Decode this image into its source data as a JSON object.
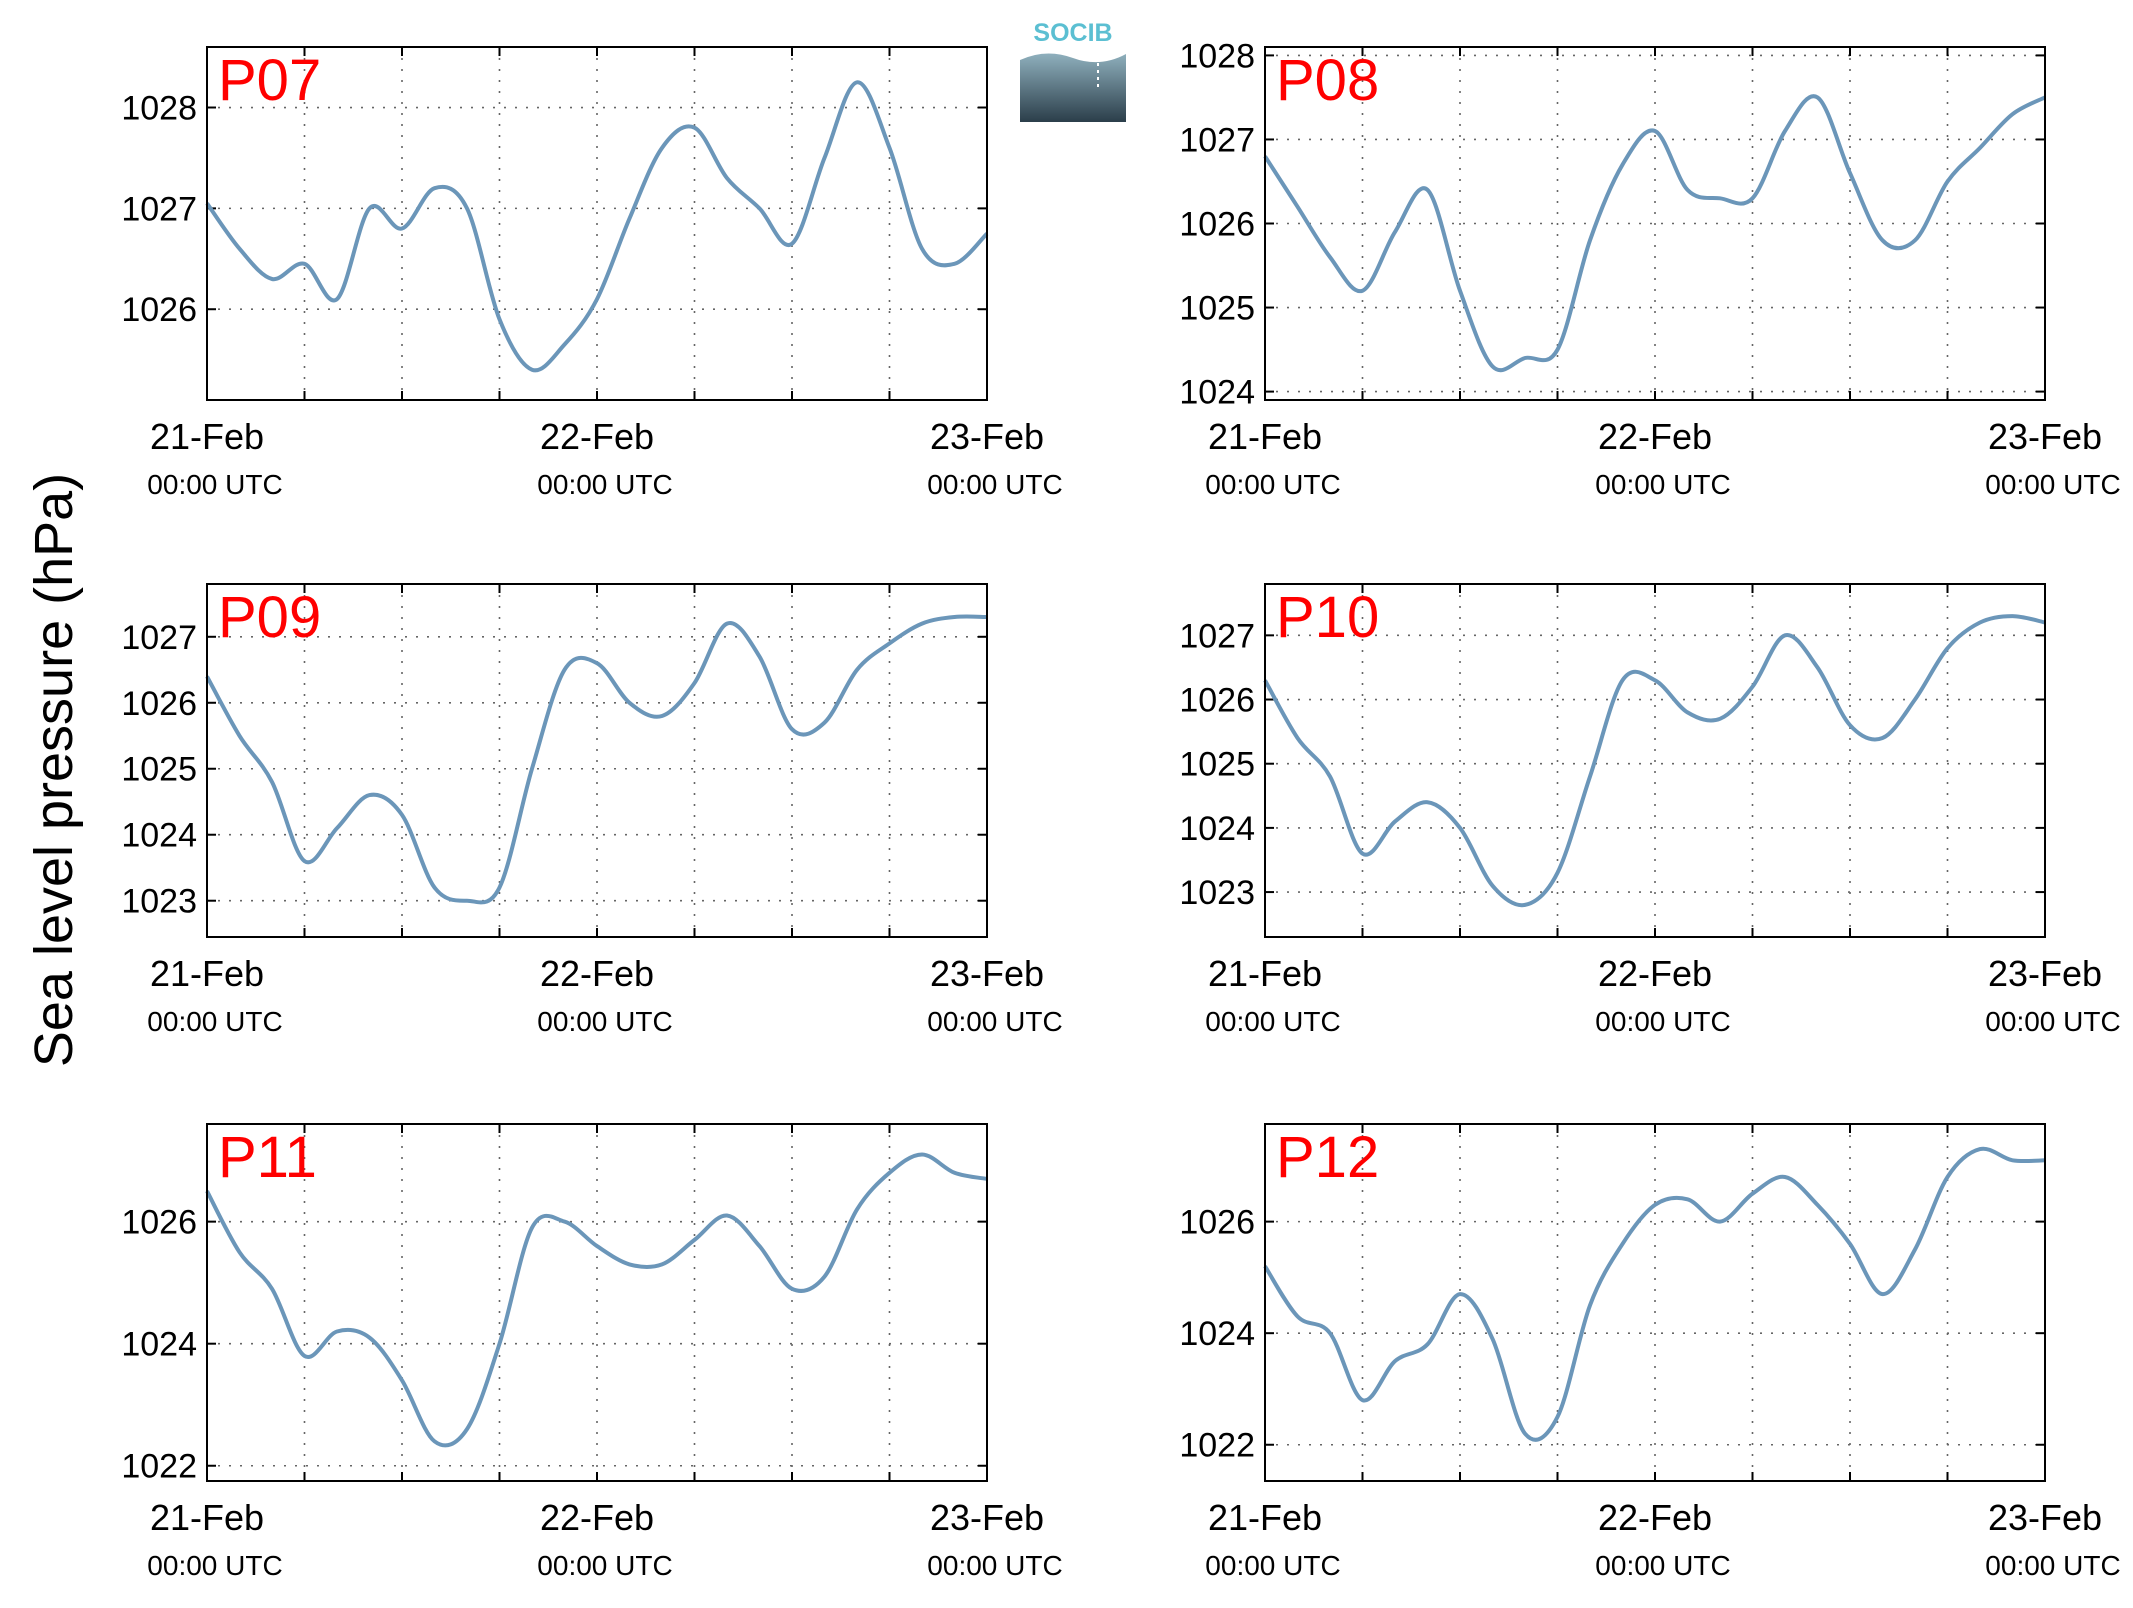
{
  "figure": {
    "ylabel": "Sea level pressure (hPa)",
    "logo_text": "SOCIB",
    "colors": {
      "line": "#6b96b9",
      "panel_label": "#ff0000",
      "axis": "#000000",
      "grid": "#666666",
      "logo_text": "#5bbfd2",
      "logo_top": "#8fb0bd",
      "logo_bottom": "#2b3e4a"
    }
  },
  "chart_data": [
    {
      "type": "line",
      "panel_label": "P07",
      "x_range": [
        "21-Feb 00:00 UTC",
        "23-Feb 00:00 UTC"
      ],
      "x_ticks": [
        {
          "day": "21-Feb",
          "time": "00:00 UTC"
        },
        {
          "day": "22-Feb",
          "time": "00:00 UTC"
        },
        {
          "day": "23-Feb",
          "time": "00:00 UTC"
        }
      ],
      "ylim": [
        1025.1,
        1028.6
      ],
      "yticks": [
        1026,
        1027,
        1028
      ],
      "grid": true,
      "x_hours": [
        0,
        2,
        4,
        6,
        8,
        10,
        12,
        14,
        16,
        18,
        20,
        22,
        24,
        26,
        28,
        30,
        32,
        34,
        36,
        38,
        40,
        42,
        44,
        46,
        48
      ],
      "values": [
        1027.05,
        1026.6,
        1026.3,
        1026.45,
        1026.1,
        1027.0,
        1026.8,
        1027.2,
        1027.0,
        1025.9,
        1025.4,
        1025.65,
        1026.1,
        1026.9,
        1027.6,
        1027.8,
        1027.3,
        1027.0,
        1026.65,
        1027.5,
        1028.25,
        1027.6,
        1026.6,
        1026.45,
        1026.75
      ]
    },
    {
      "type": "line",
      "panel_label": "P08",
      "x_range": [
        "21-Feb 00:00 UTC",
        "23-Feb 00:00 UTC"
      ],
      "x_ticks": [
        {
          "day": "21-Feb",
          "time": "00:00 UTC"
        },
        {
          "day": "22-Feb",
          "time": "00:00 UTC"
        },
        {
          "day": "23-Feb",
          "time": "00:00 UTC"
        }
      ],
      "ylim": [
        1023.9,
        1028.1
      ],
      "yticks": [
        1024,
        1025,
        1026,
        1027,
        1028
      ],
      "grid": true,
      "x_hours": [
        0,
        2,
        4,
        6,
        8,
        10,
        12,
        14,
        16,
        18,
        20,
        22,
        24,
        26,
        28,
        30,
        32,
        34,
        36,
        38,
        40,
        42,
        44,
        46,
        48
      ],
      "values": [
        1026.8,
        1026.2,
        1025.6,
        1025.2,
        1025.9,
        1026.4,
        1025.2,
        1024.3,
        1024.4,
        1024.5,
        1025.8,
        1026.7,
        1027.1,
        1026.4,
        1026.3,
        1026.3,
        1027.1,
        1027.5,
        1026.6,
        1025.8,
        1025.8,
        1026.5,
        1026.9,
        1027.3,
        1027.5
      ]
    },
    {
      "type": "line",
      "panel_label": "P09",
      "x_range": [
        "21-Feb 00:00 UTC",
        "23-Feb 00:00 UTC"
      ],
      "x_ticks": [
        {
          "day": "21-Feb",
          "time": "00:00 UTC"
        },
        {
          "day": "22-Feb",
          "time": "00:00 UTC"
        },
        {
          "day": "23-Feb",
          "time": "00:00 UTC"
        }
      ],
      "ylim": [
        1022.45,
        1027.8
      ],
      "yticks": [
        1023,
        1024,
        1025,
        1026,
        1027
      ],
      "grid": true,
      "x_hours": [
        0,
        2,
        4,
        6,
        8,
        10,
        12,
        14,
        16,
        18,
        20,
        22,
        24,
        26,
        28,
        30,
        32,
        34,
        36,
        38,
        40,
        42,
        44,
        46,
        48
      ],
      "values": [
        1026.4,
        1025.5,
        1024.8,
        1023.6,
        1024.1,
        1024.6,
        1024.3,
        1023.2,
        1023.0,
        1023.2,
        1025.0,
        1026.5,
        1026.6,
        1026.0,
        1025.8,
        1026.3,
        1027.2,
        1026.7,
        1025.6,
        1025.7,
        1026.5,
        1026.9,
        1027.2,
        1027.3,
        1027.3
      ]
    },
    {
      "type": "line",
      "panel_label": "P10",
      "x_range": [
        "21-Feb 00:00 UTC",
        "23-Feb 00:00 UTC"
      ],
      "x_ticks": [
        {
          "day": "21-Feb",
          "time": "00:00 UTC"
        },
        {
          "day": "22-Feb",
          "time": "00:00 UTC"
        },
        {
          "day": "23-Feb",
          "time": "00:00 UTC"
        }
      ],
      "ylim": [
        1022.3,
        1027.8
      ],
      "yticks": [
        1023,
        1024,
        1025,
        1026,
        1027
      ],
      "grid": true,
      "x_hours": [
        0,
        2,
        4,
        6,
        8,
        10,
        12,
        14,
        16,
        18,
        20,
        22,
        24,
        26,
        28,
        30,
        32,
        34,
        36,
        38,
        40,
        42,
        44,
        46,
        48
      ],
      "values": [
        1026.3,
        1025.4,
        1024.8,
        1023.6,
        1024.1,
        1024.4,
        1024.0,
        1023.1,
        1022.8,
        1023.3,
        1024.8,
        1026.3,
        1026.3,
        1025.8,
        1025.7,
        1026.2,
        1027.0,
        1026.5,
        1025.6,
        1025.4,
        1026.0,
        1026.8,
        1027.2,
        1027.3,
        1027.2
      ]
    },
    {
      "type": "line",
      "panel_label": "P11",
      "x_range": [
        "21-Feb 00:00 UTC",
        "23-Feb 00:00 UTC"
      ],
      "x_ticks": [
        {
          "day": "21-Feb",
          "time": "00:00 UTC"
        },
        {
          "day": "22-Feb",
          "time": "00:00 UTC"
        },
        {
          "day": "23-Feb",
          "time": "00:00 UTC"
        }
      ],
      "ylim": [
        1021.75,
        1027.6
      ],
      "yticks": [
        1022,
        1024,
        1026
      ],
      "grid": true,
      "x_hours": [
        0,
        2,
        4,
        6,
        8,
        10,
        12,
        14,
        16,
        18,
        20,
        22,
        24,
        26,
        28,
        30,
        32,
        34,
        36,
        38,
        40,
        42,
        44,
        46,
        48
      ],
      "values": [
        1026.5,
        1025.5,
        1024.9,
        1023.8,
        1024.2,
        1024.1,
        1023.4,
        1022.4,
        1022.6,
        1024.0,
        1025.9,
        1026.0,
        1025.6,
        1025.3,
        1025.3,
        1025.7,
        1026.1,
        1025.6,
        1024.9,
        1025.1,
        1026.2,
        1026.8,
        1027.1,
        1026.8,
        1026.7
      ]
    },
    {
      "type": "line",
      "panel_label": "P12",
      "x_range": [
        "21-Feb 00:00 UTC",
        "23-Feb 00:00 UTC"
      ],
      "x_ticks": [
        {
          "day": "21-Feb",
          "time": "00:00 UTC"
        },
        {
          "day": "22-Feb",
          "time": "00:00 UTC"
        },
        {
          "day": "23-Feb",
          "time": "00:00 UTC"
        }
      ],
      "ylim": [
        1021.35,
        1027.75
      ],
      "yticks": [
        1022,
        1024,
        1026
      ],
      "grid": true,
      "x_hours": [
        0,
        2,
        4,
        6,
        8,
        10,
        12,
        14,
        16,
        18,
        20,
        22,
        24,
        26,
        28,
        30,
        32,
        34,
        36,
        38,
        40,
        42,
        44,
        46,
        48
      ],
      "values": [
        1025.2,
        1024.3,
        1024.0,
        1022.8,
        1023.5,
        1023.8,
        1024.7,
        1023.9,
        1022.2,
        1022.5,
        1024.5,
        1025.6,
        1026.3,
        1026.4,
        1026.0,
        1026.5,
        1026.8,
        1026.3,
        1025.6,
        1024.7,
        1025.5,
        1026.8,
        1027.3,
        1027.1,
        1027.1
      ]
    }
  ]
}
